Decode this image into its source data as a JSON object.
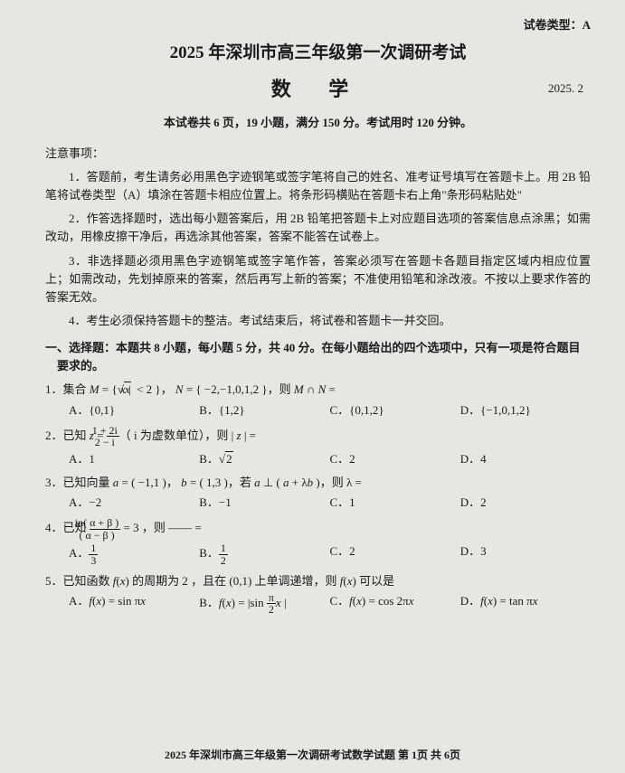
{
  "meta": {
    "type_label": "试卷类型：A",
    "title": "2025 年深圳市高三年级第一次调研考试",
    "subject": "数  学",
    "date": "2025. 2",
    "overview": "本试卷共 6 页，19 小题，满分 150 分。考试用时 120 分钟。"
  },
  "notice": {
    "heading": "注意事项：",
    "items": [
      "1．答题前，考生请务必用黑色字迹钢笔或签字笔将自己的姓名、准考证号填写在答题卡上。用 2B 铅笔将试卷类型（A）填涂在答题卡相应位置上。将条形码横贴在答题卡右上角\"条形码粘贴处\"",
      "2．作答选择题时，选出每小题答案后，用 2B 铅笔把答题卡上对应题目选项的答案信息点涂黑；如需改动，用橡皮擦干净后，再选涂其他答案，答案不能答在试卷上。",
      "3．非选择题必须用黑色字迹钢笔或签字笔作答，答案必须写在答题卡各题目指定区域内相应位置上；如需改动，先划掉原来的答案，然后再写上新的答案；不准使用铅笔和涂改液。不按以上要求作答的答案无效。",
      "4．考生必须保持答题卡的整洁。考试结束后，将试卷和答题卡一并交回。"
    ]
  },
  "section1": {
    "heading": "一、选择题：本题共 8 小题，每小题 5 分，共 40 分。在每小题给出的四个选项中，只有一项是符合题目要求的。"
  },
  "q1": {
    "num": "1．",
    "stem_a": "集合 ",
    "stem_b": "M",
    "stem_c": " = { ",
    "stem_d": "x",
    "stem_e": " | ",
    "stem_f": "x",
    "stem_g": " < 2 }， ",
    "stem_h": "N",
    "stem_i": " = { −2,−1,0,1,2 }，则 ",
    "stem_j": "M",
    "stem_k": " ∩ ",
    "stem_l": "N",
    "stem_m": " =",
    "A": "A．{0,1}",
    "B": "B．{1,2}",
    "C": "C．{0,1,2}",
    "D": "D．{−1,0,1,2}"
  },
  "q2": {
    "num": "2．",
    "stem_a": "已知 ",
    "stem_b": "z",
    "stem_c": " = ",
    "frac_n": "1 + 2i",
    "frac_d": "2 − i",
    "stem_d": "（ i 为虚数单位），则 | ",
    "stem_e": "z",
    "stem_f": " | =",
    "A": "A．1",
    "B_pre": "B．",
    "B_rad": "2",
    "C": "C．2",
    "D": "D．4"
  },
  "q3": {
    "num": "3．",
    "stem_a": "已知向量 ",
    "stem_b": "a",
    "stem_c": " = ( −1,1 )， ",
    "stem_d": "b",
    "stem_e": " = ( 1,3 )，若 ",
    "stem_f": "a",
    "stem_g": " ⊥ ( ",
    "stem_h": "a",
    "stem_i": " + λ",
    "stem_j": "b",
    "stem_k": " )，则 λ =",
    "A": "A．−2",
    "B": "B．−1",
    "C": "C．1",
    "D": "D．2"
  },
  "q4": {
    "num": "4．",
    "stem_a": "已知 ",
    "frac_n_a": "in( α + β )",
    "frac_d_a": "( α − β )",
    "stem_b": " = 3 ，则 —— =",
    "A_pre": "A．",
    "A_n": "1",
    "A_d": "3",
    "B_pre": "B．",
    "B_n": "1",
    "B_d": "2",
    "C": "C．2",
    "D": "D．3"
  },
  "q5": {
    "num": "5．",
    "stem_a": "已知函数 ",
    "stem_b": "f",
    "stem_c": "(",
    "stem_d": "x",
    "stem_e": ") 的周期为 2 ，且在 (0,1) 上单调递增，则 ",
    "stem_f": "f",
    "stem_g": "(",
    "stem_h": "x",
    "stem_i": ") 可以是",
    "A_pre": "A．",
    "A_f": "f",
    "A_p1": "(",
    "A_x": "x",
    "A_p2": ") = sin π",
    "A_x2": "x",
    "B_pre": "B．",
    "B_f": "f",
    "B_p1": "(",
    "B_x": "x",
    "B_p2": ") = |sin ",
    "B_n": "π",
    "B_d": "2",
    "B_x2": "x",
    "B_p3": " |",
    "C_pre": "C．",
    "C_f": "f",
    "C_p1": "(",
    "C_x": "x",
    "C_p2": ") = cos 2π",
    "C_x2": "x",
    "D_pre": "D．",
    "D_f": "f",
    "D_p1": "(",
    "D_x": "x",
    "D_p2": ") = tan π",
    "D_x2": "x"
  },
  "footer": "2025 年深圳市高三年级第一次调研考试数学试题   第 1页  共 6页"
}
